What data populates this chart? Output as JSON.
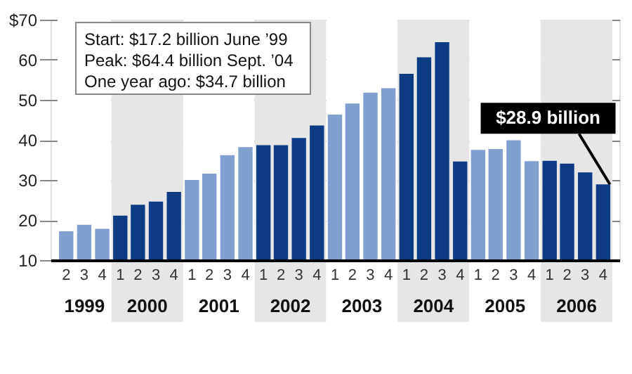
{
  "chart_data": {
    "type": "bar",
    "x": [
      "1999-05-15",
      "1999-08-15",
      "1999-11-15",
      "2000-02-15",
      "2000-05-15",
      "2000-08-15",
      "2000-11-15",
      "2001-02-15",
      "2001-05-15",
      "2001-08-15",
      "2001-11-15",
      "2002-02-15",
      "2002-05-15",
      "2002-08-15",
      "2002-11-15",
      "2003-02-15",
      "2003-05-15",
      "2003-08-15",
      "2003-11-15",
      "2004-02-15",
      "2004-05-15",
      "2004-08-15",
      "2004-11-15",
      "2005-02-15",
      "2005-05-15",
      "2005-08-15",
      "2005-11-15",
      "2006-02-15",
      "2006-05-15",
      "2006-08-15",
      "2006-11-15"
    ],
    "values": [
      17.2,
      18.8,
      17.8,
      21.1,
      23.8,
      24.6,
      27,
      30,
      31.6,
      36.2,
      38.2,
      38.7,
      38.7,
      40.5,
      43.6,
      46.3,
      49.1,
      51.8,
      52.9,
      56.5,
      60.6,
      64.4,
      34.6,
      37.5,
      37.7,
      39.9,
      34.7,
      34.8,
      34.1,
      31.9,
      28.9
    ],
    "colors": [
      "#819fcf",
      "#819fcf",
      "#819fcf",
      "#0d3b84",
      "#0d3b84",
      "#0d3b84",
      "#0d3b84",
      "#819fcf",
      "#819fcf",
      "#819fcf",
      "#819fcf",
      "#0d3b84",
      "#0d3b84",
      "#0d3b84",
      "#0d3b84",
      "#819fcf",
      "#819fcf",
      "#819fcf",
      "#819fcf",
      "#0d3b84",
      "#0d3b84",
      "#0d3b84",
      "#0d3b84",
      "#819fcf",
      "#819fcf",
      "#819fcf",
      "#819fcf",
      "#0d3b84",
      "#0d3b84",
      "#0d3b84",
      "#0d3b84"
    ],
    "xlim": [
      "1999-04-01",
      "2007-01-01"
    ],
    "xticks": [
      {
        "value": "1999-05-15",
        "label": "2"
      },
      {
        "value": "1999-08-15",
        "label": "3"
      },
      {
        "value": "1999-11-15",
        "label": "4"
      },
      {
        "value": "2000-02-15",
        "label": "1"
      },
      {
        "value": "2000-05-15",
        "label": "2"
      },
      {
        "value": "2000-08-15",
        "label": "3"
      },
      {
        "value": "2000-11-15",
        "label": "4"
      },
      {
        "value": "2001-02-15",
        "label": "1"
      },
      {
        "value": "2001-05-15",
        "label": "2"
      },
      {
        "value": "2001-08-15",
        "label": "3"
      },
      {
        "value": "2001-11-15",
        "label": "4"
      },
      {
        "value": "2002-02-15",
        "label": "1"
      },
      {
        "value": "2002-05-15",
        "label": "2"
      },
      {
        "value": "2002-08-15",
        "label": "3"
      },
      {
        "value": "2002-11-15",
        "label": "4"
      },
      {
        "value": "2003-02-15",
        "label": "1"
      },
      {
        "value": "2003-05-15",
        "label": "2"
      },
      {
        "value": "2003-08-15",
        "label": "3"
      },
      {
        "value": "2003-11-15",
        "label": "4"
      },
      {
        "value": "2004-02-15",
        "label": "1"
      },
      {
        "value": "2004-05-15",
        "label": "2"
      },
      {
        "value": "2004-08-15",
        "label": "3"
      },
      {
        "value": "2004-11-15",
        "label": "4"
      },
      {
        "value": "2005-02-15",
        "label": "1"
      },
      {
        "value": "2005-05-15",
        "label": "2"
      },
      {
        "value": "2005-08-15",
        "label": "3"
      },
      {
        "value": "2005-11-15",
        "label": "4"
      },
      {
        "value": "2006-02-15",
        "label": "1"
      },
      {
        "value": "2006-05-15",
        "label": "2"
      },
      {
        "value": "2006-08-15",
        "label": "3"
      },
      {
        "value": "2006-11-15",
        "label": "4"
      }
    ],
    "ylim": [
      10,
      70
    ],
    "yticks": [
      10,
      20,
      30,
      40,
      50,
      60,
      {
        "value": 70,
        "label": "$70"
      }
    ],
    "grid": "y",
    "bands": [
      {
        "axis": "x",
        "from": "1999-04-01",
        "to": "2000-01-01",
        "label": "1999",
        "color": "#ffffff"
      },
      {
        "axis": "x",
        "from": "2000-01-01",
        "to": "2001-01-01",
        "label": "2000",
        "color": "#e6e6e6"
      },
      {
        "axis": "x",
        "from": "2001-01-01",
        "to": "2002-01-01",
        "label": "2001",
        "color": "#ffffff"
      },
      {
        "axis": "x",
        "from": "2002-01-01",
        "to": "2003-01-01",
        "label": "2002",
        "color": "#e6e6e6"
      },
      {
        "axis": "x",
        "from": "2003-01-01",
        "to": "2004-01-01",
        "label": "2003",
        "color": "#ffffff"
      },
      {
        "axis": "x",
        "from": "2004-01-01",
        "to": "2005-01-01",
        "label": "2004",
        "color": "#e6e6e6"
      },
      {
        "axis": "x",
        "from": "2005-01-01",
        "to": "2006-01-01",
        "label": "2005",
        "color": "#ffffff"
      },
      {
        "axis": "x",
        "from": "2006-01-01",
        "to": "2007-01-01",
        "label": "2006",
        "color": "#e6e6e6"
      }
    ],
    "annotations": [
      "Start: $17.2 billion June ’99",
      "Peak: $64.4 billion Sept. ’04",
      "One year ago: $34.7 billion",
      {
        "text": "$28.9 billion",
        "x": "2006-11-15",
        "y": 28.9
      }
    ]
  }
}
